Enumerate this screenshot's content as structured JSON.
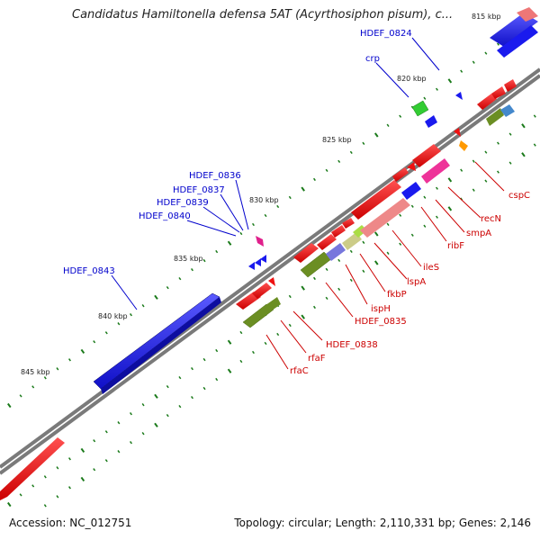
{
  "title": "Candidatus Hamiltonella defensa 5AT (Acyrthosiphon pisum), c...",
  "footer": {
    "accession": "Accession: NC_012751",
    "summary": "Topology: circular; Length: 2,110,331 bp; Genes: 2,146"
  },
  "colors": {
    "backbone": "#808080",
    "tick": "#1a7a1a",
    "forward_gene": "#1a1aee",
    "reverse_gene": "#ee1111",
    "label_blue": "#0000cc",
    "label_red": "#cc0000"
  },
  "kbp_labels": [
    "815 kbp",
    "820 kbp",
    "825 kbp",
    "830 kbp",
    "835 kbp",
    "840 kbp",
    "845 kbp"
  ],
  "blue_labels": [
    "HDEF_0824",
    "crp",
    "HDEF_0836",
    "HDEF_0837",
    "HDEF_0839",
    "HDEF_0840",
    "HDEF_0843"
  ],
  "red_labels": [
    "cspC",
    "recN",
    "smpA",
    "ribF",
    "ileS",
    "lspA",
    "fkbP",
    "ispH",
    "HDEF_0835",
    "HDEF_0838",
    "rfaF",
    "rfaC"
  ]
}
